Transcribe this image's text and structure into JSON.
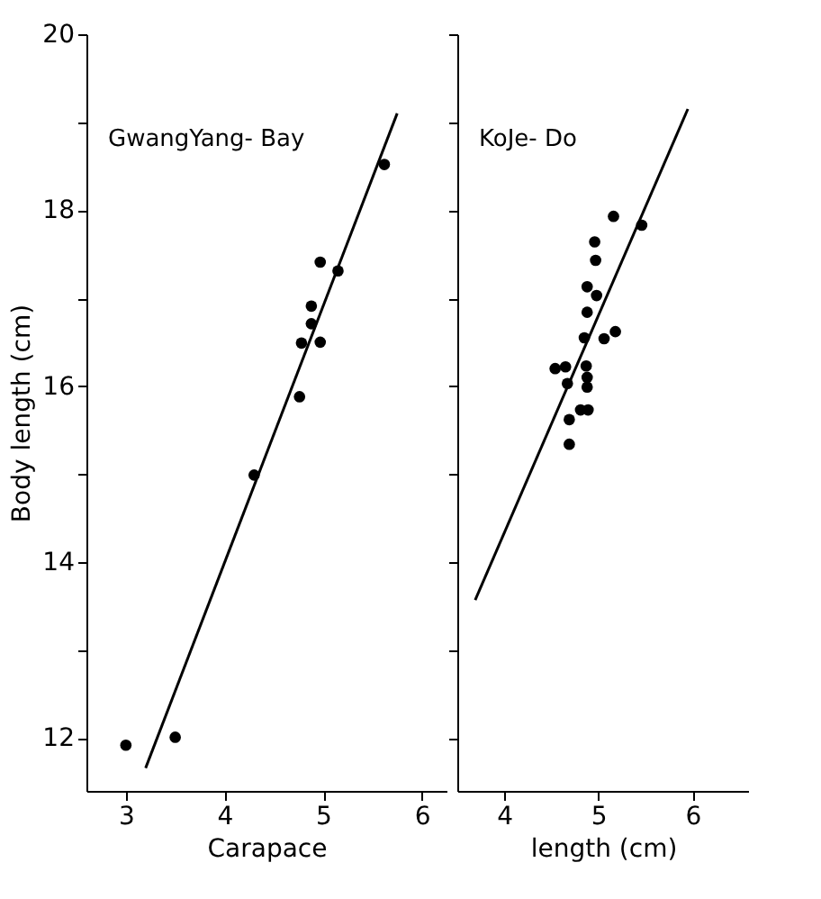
{
  "chart_data": [
    {
      "type": "scatter",
      "annotations": [
        "GwangYang- Bay"
      ],
      "ylabel": "Body   length   (cm)",
      "xlabel": "Carapace",
      "xlim": [
        2.6,
        6.25
      ],
      "ylim": [
        11.4,
        20
      ],
      "xticks": [
        3,
        4,
        5,
        6
      ],
      "yticks": [
        12,
        {
          "value": 13,
          "label": null
        },
        14,
        {
          "value": 15,
          "label": null
        },
        16,
        {
          "value": 17,
          "label": null
        },
        18,
        {
          "value": 19,
          "label": null
        },
        20
      ],
      "grid": false,
      "series": [
        {
          "marker": "circle",
          "color": "#000000",
          "x": [
            3.0,
            3.5,
            4.3,
            4.76,
            4.78,
            4.97,
            4.88,
            4.88,
            4.97,
            5.15,
            5.62
          ],
          "values": [
            11.92,
            12.01,
            14.99,
            15.88,
            16.49,
            16.5,
            16.71,
            16.91,
            17.41,
            17.31,
            18.52
          ]
        },
        {
          "type": "line",
          "color": "#000000",
          "line_style": "solid",
          "x": [
            3.2,
            5.75
          ],
          "values": [
            11.66,
            19.1
          ]
        }
      ]
    },
    {
      "type": "scatter",
      "annotations": [
        "KoJe-   Do"
      ],
      "xlabel": "length  (cm)",
      "xlim": [
        3.5,
        6.6
      ],
      "ylim": [
        11.4,
        20
      ],
      "xticks": [
        4,
        5,
        6
      ],
      "yticks": [
        12,
        13,
        14,
        15,
        16,
        17,
        18,
        19,
        20
      ],
      "tick_labels": "x",
      "grid": false,
      "series": [
        {
          "marker": "circle",
          "color": "#000000",
          "x": [
            5.16,
            5.46,
            4.96,
            4.97,
            4.88,
            4.98,
            4.88,
            4.85,
            5.06,
            5.18,
            4.54,
            4.65,
            4.87,
            4.88,
            4.88,
            4.67,
            4.81,
            4.89,
            4.69,
            4.69
          ],
          "values": [
            17.93,
            17.83,
            17.64,
            17.43,
            17.13,
            17.03,
            16.84,
            16.55,
            16.54,
            16.62,
            16.2,
            16.22,
            16.23,
            16.1,
            15.99,
            16.03,
            15.73,
            15.73,
            15.62,
            15.34
          ]
        },
        {
          "type": "line",
          "color": "#000000",
          "line_style": "solid",
          "x": [
            3.69,
            5.95
          ],
          "values": [
            13.57,
            19.15
          ]
        }
      ]
    }
  ]
}
